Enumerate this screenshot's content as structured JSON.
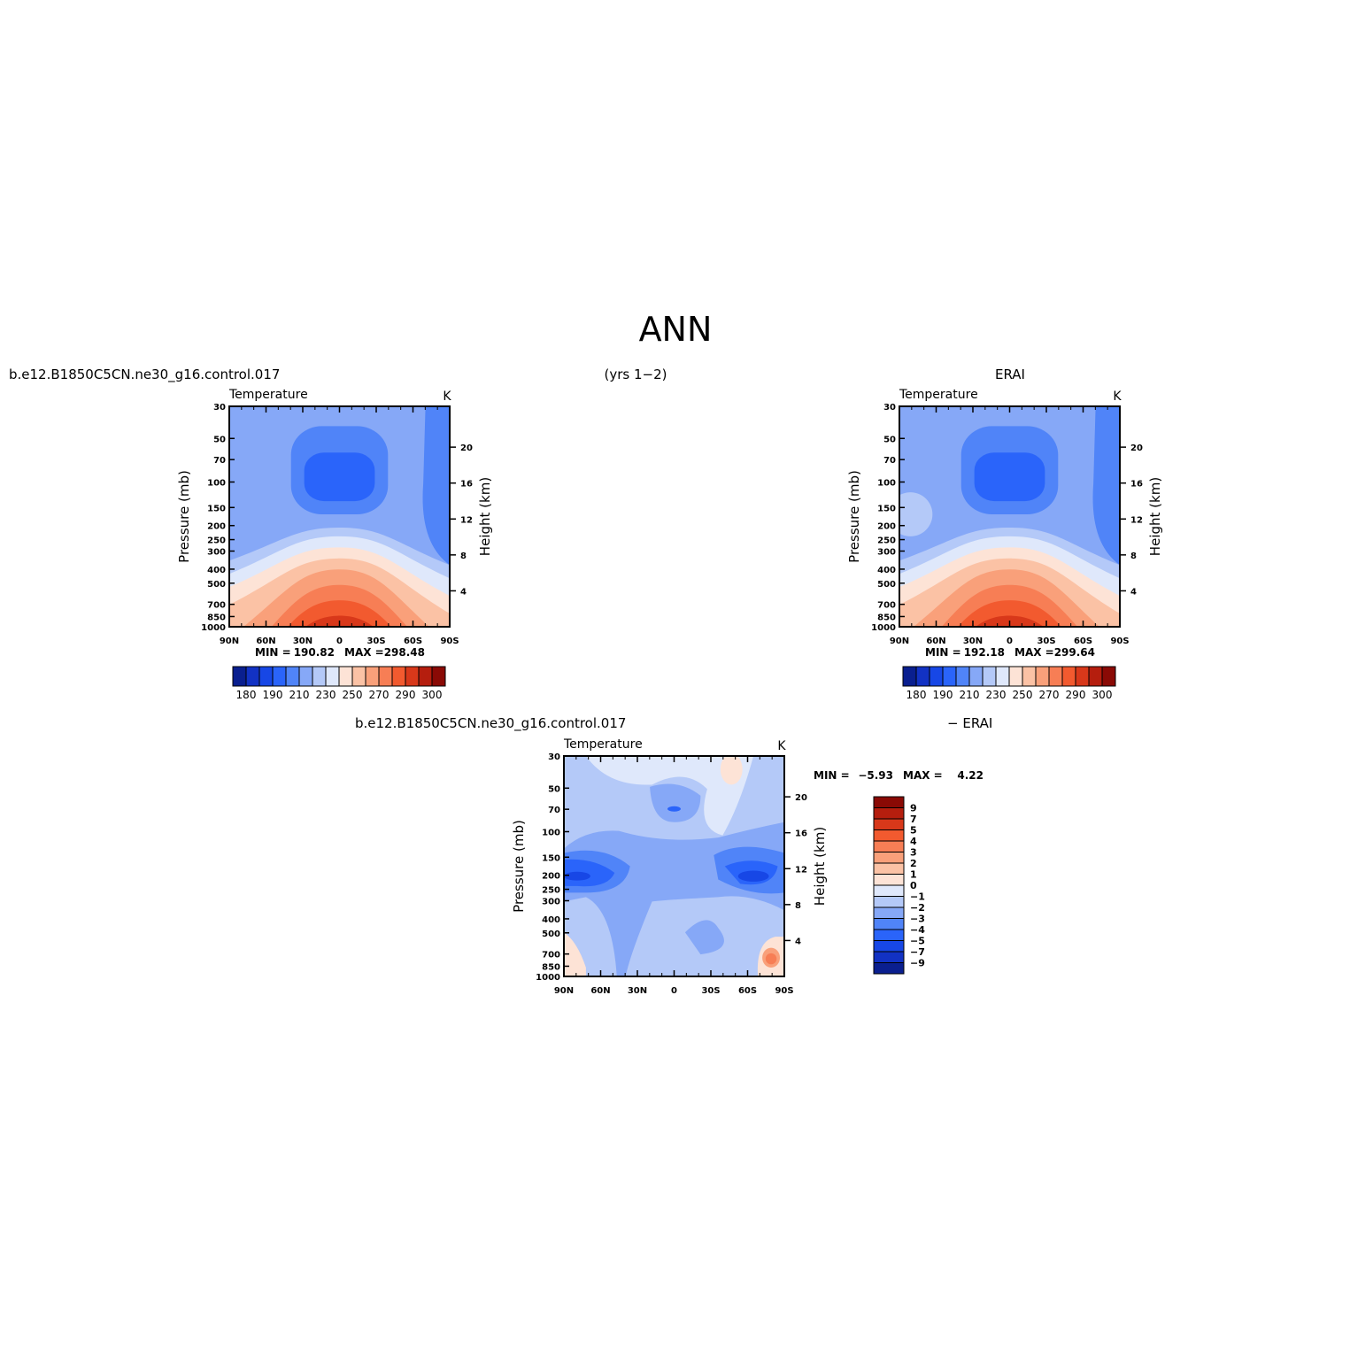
{
  "figure": {
    "title": "ANN",
    "years_label": "(yrs 1−2)"
  },
  "colors": {
    "abs_fills": [
      "#0a1f8f",
      "#1232c4",
      "#1747e6",
      "#2a64fa",
      "#5084f8",
      "#86a8f7",
      "#b4c9f8",
      "#dfe8fb",
      "#fde3d6",
      "#fbc2a5",
      "#f9a07a",
      "#f77e55",
      "#f25a2f",
      "#d8381a",
      "#b51e0e",
      "#8a0a05"
    ],
    "diff_fills": [
      "#0a1f8f",
      "#1232c4",
      "#1747e6",
      "#2a64fa",
      "#5084f8",
      "#86a8f7",
      "#b4c9f8",
      "#dfe8fb",
      "#fde3d6",
      "#fbc2a5",
      "#f9a07a",
      "#f77e55",
      "#f25a2f",
      "#d8381a",
      "#b51e0e",
      "#8a0a05"
    ]
  },
  "panels": [
    {
      "id": "model",
      "header_left": "b.e12.B1850C5CN.ne30_g16.control.017",
      "header_right": "",
      "variable": "Temperature",
      "units": "K",
      "min_label": "MIN =",
      "min_value": "190.82",
      "max_label": "MAX =",
      "max_value": "298.48"
    },
    {
      "id": "obs",
      "header_left": "",
      "header_right": "ERAI",
      "variable": "Temperature",
      "units": "K",
      "min_label": "MIN =",
      "min_value": "192.18",
      "max_label": "MAX =",
      "max_value": "299.64"
    },
    {
      "id": "diff",
      "header_left": "b.e12.B1850C5CN.ne30_g16.control.017",
      "header_right": "− ERAI",
      "variable": "Temperature",
      "units": "K",
      "min_label": "MIN =",
      "min_value": "−5.93",
      "max_label": "MAX =",
      "max_value": "4.22"
    }
  ],
  "axes": {
    "ylabel": "Pressure (mb)",
    "ylabel_right": "Height (km)",
    "pressure_ticks": [
      "30",
      "50",
      "70",
      "100",
      "150",
      "200",
      "250",
      "300",
      "400",
      "500",
      "700",
      "850",
      "1000"
    ],
    "height_ticks": [
      "20",
      "16",
      "12",
      "8",
      "4"
    ],
    "lat_ticks": [
      "90N",
      "60N",
      "30N",
      "0",
      "30S",
      "60S",
      "90S"
    ]
  },
  "chart_data": [
    {
      "type": "heatmap",
      "name": "model",
      "x": [
        90,
        60,
        30,
        0,
        -30,
        -60,
        -90
      ],
      "y_pressure": [
        30,
        50,
        70,
        100,
        150,
        200,
        250,
        300,
        400,
        500,
        700,
        850,
        1000
      ],
      "ylim": [
        1000,
        30
      ],
      "y_scale": "log",
      "contour_levels": [
        180,
        190,
        200,
        210,
        220,
        230,
        240,
        250,
        260,
        270,
        280,
        290,
        300
      ],
      "min": 190.82,
      "max": 298.48
    },
    {
      "type": "heatmap",
      "name": "obs",
      "x": [
        90,
        60,
        30,
        0,
        -30,
        -60,
        -90
      ],
      "y_pressure": [
        30,
        50,
        70,
        100,
        150,
        200,
        250,
        300,
        400,
        500,
        700,
        850,
        1000
      ],
      "ylim": [
        1000,
        30
      ],
      "y_scale": "log",
      "contour_levels": [
        180,
        190,
        200,
        210,
        220,
        230,
        240,
        250,
        260,
        270,
        280,
        290,
        300
      ],
      "min": 192.18,
      "max": 299.64
    },
    {
      "type": "heatmap",
      "name": "difference",
      "x": [
        90,
        60,
        30,
        0,
        -30,
        -60,
        -90
      ],
      "y_pressure": [
        30,
        50,
        70,
        100,
        150,
        200,
        250,
        300,
        400,
        500,
        700,
        850,
        1000
      ],
      "ylim": [
        1000,
        30
      ],
      "y_scale": "log",
      "contour_levels": [
        -9,
        -7,
        -5,
        -4,
        -3,
        -2,
        -1,
        0,
        1,
        2,
        3,
        4,
        5,
        7,
        9
      ],
      "min": -5.93,
      "max": 4.22
    }
  ],
  "colorbars": {
    "abs_labels": [
      "180",
      "190",
      "210",
      "230",
      "250",
      "270",
      "290",
      "300"
    ],
    "diff_labels": [
      "9",
      "7",
      "5",
      "4",
      "3",
      "2",
      "1",
      "0",
      "−1",
      "−2",
      "−3",
      "−4",
      "−5",
      "−7",
      "−9"
    ]
  }
}
